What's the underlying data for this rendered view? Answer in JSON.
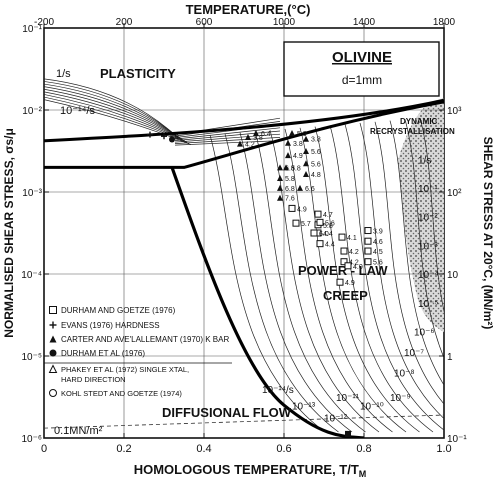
{
  "chart_data": {
    "type": "scatter",
    "title_box": {
      "title": "OLIVINE",
      "subtitle": "d=1mm"
    },
    "top_axis": {
      "label": "TEMPERATURE,(°C)",
      "ticks": [
        {
          "value": -200,
          "label": "-200"
        },
        {
          "value": 200,
          "label": "200"
        },
        {
          "value": 600,
          "label": "600"
        },
        {
          "value": 1000,
          "label": "1000"
        },
        {
          "value": 1400,
          "label": "1400"
        },
        {
          "value": 1800,
          "label": "1800"
        }
      ]
    },
    "x_axis": {
      "label": "HOMOLOGOUS TEMPERATURE, T/T",
      "label_subscript": "M",
      "range": [
        0,
        1.0
      ],
      "ticks": [
        {
          "value": 0,
          "label": "0"
        },
        {
          "value": 0.2,
          "label": "0.2"
        },
        {
          "value": 0.4,
          "label": "0.4"
        },
        {
          "value": 0.6,
          "label": "0.6"
        },
        {
          "value": 0.8,
          "label": "0.8"
        },
        {
          "value": 1.0,
          "label": "1.0"
        }
      ]
    },
    "y_axis_left": {
      "label": "NORMALISED SHEAR STRESS, σs/μ",
      "scale": "log",
      "range_exp": [
        -6,
        -1
      ],
      "ticks": [
        {
          "exp": -1,
          "label": "10⁻¹"
        },
        {
          "exp": -2,
          "label": "10⁻²"
        },
        {
          "exp": -3,
          "label": "10⁻³"
        },
        {
          "exp": -4,
          "label": "10⁻⁴"
        },
        {
          "exp": -5,
          "label": "10⁻⁵"
        },
        {
          "exp": -6,
          "label": "10⁻⁶"
        }
      ]
    },
    "y_axis_right": {
      "label": "SHEAR STRESS AT 20°C, (MN/m²)",
      "ticks": [
        {
          "exp": -2,
          "label": "10³"
        },
        {
          "exp": -3,
          "label": "10²"
        },
        {
          "exp": -4,
          "label": "10"
        },
        {
          "exp": -5,
          "label": "1"
        },
        {
          "exp": -6,
          "label": "10⁻¹"
        }
      ]
    },
    "field_labels": {
      "plasticity": "PLASTICITY",
      "power_law": "POWER - LAW",
      "creep": "CREEP",
      "diffusional": "DIFFUSIONAL FLOW",
      "dynamic": "DYNAMIC",
      "recrystallisation": "RECRYSTALLISATION",
      "stress_line": "0.1MN/m²"
    },
    "boundaries": {
      "ideal_strength_left_exp": -2.4,
      "plasticity_powerlaw": [
        [
          0,
          -2.7
        ],
        [
          0.35,
          -2.7
        ],
        [
          1.0,
          -1.9
        ]
      ],
      "powerlaw_diffusion": [
        [
          0.32,
          -2.7
        ],
        [
          0.45,
          -4.5
        ],
        [
          0.6,
          -5.6
        ],
        [
          0.8,
          -6.0
        ]
      ]
    },
    "contour_labels": [
      {
        "label": "1/s",
        "x": 0.03,
        "exp": -1.6
      },
      {
        "label": "10⁻¹⁴/s",
        "x": 0.04,
        "exp": -2.05
      },
      {
        "label": "1/s",
        "x": 0.935,
        "exp": -2.65
      },
      {
        "label": "10⁻¹",
        "x": 0.935,
        "exp": -3.0
      },
      {
        "label": "10⁻²",
        "x": 0.935,
        "exp": -3.35
      },
      {
        "label": "10⁻³",
        "x": 0.935,
        "exp": -3.7
      },
      {
        "label": "10⁻⁴",
        "x": 0.935,
        "exp": -4.05
      },
      {
        "label": "10⁻⁵",
        "x": 0.935,
        "exp": -4.4
      },
      {
        "label": "10⁻⁶",
        "x": 0.925,
        "exp": -4.75
      },
      {
        "label": "10⁻⁷",
        "x": 0.9,
        "exp": -5.0
      },
      {
        "label": "10⁻⁸",
        "x": 0.875,
        "exp": -5.25
      },
      {
        "label": "10⁻⁹",
        "x": 0.865,
        "exp": -5.55
      },
      {
        "label": "10⁻¹⁰",
        "x": 0.79,
        "exp": -5.65
      },
      {
        "label": "10⁻¹¹",
        "x": 0.73,
        "exp": -5.55
      },
      {
        "label": "10⁻¹²",
        "x": 0.7,
        "exp": -5.8
      },
      {
        "label": "10⁻¹³",
        "x": 0.62,
        "exp": -5.65
      },
      {
        "label": "10⁻¹⁴/s",
        "x": 0.545,
        "exp": -5.45
      }
    ],
    "legend": [
      {
        "symbol": "open-square",
        "label": "DURHAM AND GOETZE (1976)"
      },
      {
        "symbol": "plus",
        "label": "EVANS (1976) HARDNESS"
      },
      {
        "symbol": "filled-triangle",
        "label": "CARTER AND AVE'LALLEMANT (1970) K BAR"
      },
      {
        "symbol": "filled-circle",
        "label": "DURHAM ET AL (1976)"
      },
      {
        "symbol": "open-triangle",
        "label": "PHAKEY ET AL (1972) SINGLE XTAL,"
      },
      {
        "symbol": "none",
        "label": "HARD DIRECTION"
      },
      {
        "symbol": "open-circle",
        "label": "KOHL STEDT AND GOETZE (1974)"
      }
    ],
    "points": [
      {
        "symbol": "filled-triangle",
        "x": 0.655,
        "exp": -2.35,
        "label": "3.8"
      },
      {
        "symbol": "filled-triangle",
        "x": 0.655,
        "exp": -2.5,
        "label": "5.6"
      },
      {
        "symbol": "filled-triangle",
        "x": 0.655,
        "exp": -2.65,
        "label": "5.6"
      },
      {
        "symbol": "filled-triangle",
        "x": 0.655,
        "exp": -2.78,
        "label": "4.8"
      },
      {
        "symbol": "filled-triangle",
        "x": 0.61,
        "exp": -2.4,
        "label": "3.8"
      },
      {
        "symbol": "filled-triangle",
        "x": 0.61,
        "exp": -2.55,
        "label": "4.9"
      },
      {
        "symbol": "filled-triangle",
        "x": 0.605,
        "exp": -2.7,
        "label": "5.8"
      },
      {
        "symbol": "filled-triangle",
        "x": 0.59,
        "exp": -2.7,
        "label": "6.8"
      },
      {
        "symbol": "filled-triangle",
        "x": 0.59,
        "exp": -2.83,
        "label": "5.8"
      },
      {
        "symbol": "filled-triangle",
        "x": 0.59,
        "exp": -2.95,
        "label": "6.8"
      },
      {
        "symbol": "filled-triangle",
        "x": 0.59,
        "exp": -3.07,
        "label": "7.6"
      },
      {
        "symbol": "filled-triangle",
        "x": 0.64,
        "exp": -2.95,
        "label": "6.6"
      },
      {
        "symbol": "open-square",
        "x": 0.62,
        "exp": -3.2,
        "label": "4.9"
      },
      {
        "symbol": "open-square",
        "x": 0.63,
        "exp": -3.38,
        "label": "5.7"
      },
      {
        "symbol": "open-square",
        "x": 0.685,
        "exp": -3.27,
        "label": "4.7"
      },
      {
        "symbol": "open-square",
        "x": 0.685,
        "exp": -3.4,
        "label": "5.8"
      },
      {
        "symbol": "open-square",
        "x": 0.685,
        "exp": -3.5,
        "label": "4.4"
      },
      {
        "symbol": "open-square",
        "x": 0.69,
        "exp": -3.37,
        "label": "5.6"
      },
      {
        "symbol": "open-square",
        "x": 0.745,
        "exp": -3.55,
        "label": "4.1"
      },
      {
        "symbol": "open-square",
        "x": 0.75,
        "exp": -3.72,
        "label": "4.2"
      },
      {
        "symbol": "open-square",
        "x": 0.75,
        "exp": -3.85,
        "label": "4.2"
      },
      {
        "symbol": "open-square",
        "x": 0.76,
        "exp": -3.9,
        "label": "4.0"
      },
      {
        "symbol": "open-square",
        "x": 0.74,
        "exp": -4.1,
        "label": "4.9"
      },
      {
        "symbol": "open-square",
        "x": 0.81,
        "exp": -3.47,
        "label": "3.9"
      },
      {
        "symbol": "open-square",
        "x": 0.81,
        "exp": -3.6,
        "label": "4.6"
      },
      {
        "symbol": "open-square",
        "x": 0.81,
        "exp": -3.72,
        "label": "4.5"
      },
      {
        "symbol": "open-square",
        "x": 0.81,
        "exp": -3.85,
        "label": "5.6"
      },
      {
        "symbol": "filled-triangle",
        "x": 0.53,
        "exp": -2.28,
        "label": "6.4"
      },
      {
        "symbol": "filled-triangle",
        "x": 0.51,
        "exp": -2.33,
        "label": "3.8"
      },
      {
        "symbol": "filled-triangle",
        "x": 0.49,
        "exp": -2.41,
        "label": "4.2"
      },
      {
        "symbol": "filled-triangle",
        "x": 0.62,
        "exp": -2.28,
        "label": "5.9"
      },
      {
        "symbol": "filled-circle",
        "x": 0.32,
        "exp": -2.36,
        "label": ""
      },
      {
        "symbol": "plus",
        "x": 0.3,
        "exp": -2.32,
        "label": "3.9"
      },
      {
        "symbol": "plus",
        "x": 0.265,
        "exp": -2.3,
        "label": ""
      },
      {
        "symbol": "filled-square",
        "x": 0.76,
        "exp": -5.95,
        "label": ""
      },
      {
        "symbol": "open-square",
        "x": 0.675,
        "exp": -3.5,
        "label": "6.0"
      },
      {
        "symbol": "open-square",
        "x": 0.69,
        "exp": -3.63,
        "label": "4.4"
      }
    ]
  }
}
